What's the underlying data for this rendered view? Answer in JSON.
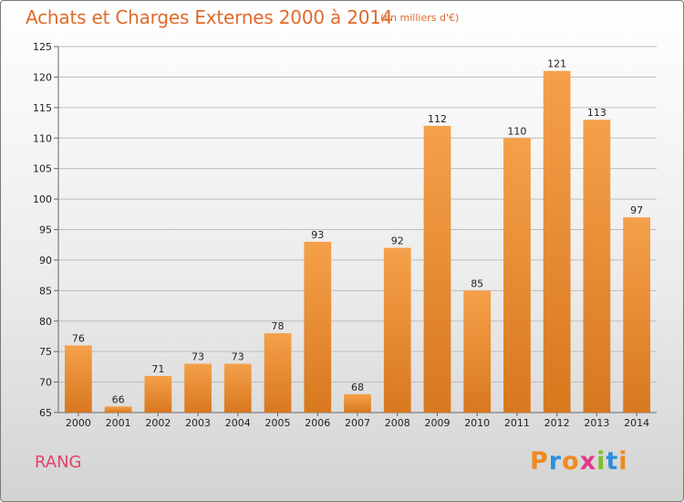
{
  "chart_data": {
    "type": "bar",
    "title": "Achats et Charges Externes 2000 à 2014",
    "subtitle": "(en milliers d'€)",
    "categories": [
      "2000",
      "2001",
      "2002",
      "2003",
      "2004",
      "2005",
      "2006",
      "2007",
      "2008",
      "2009",
      "2010",
      "2011",
      "2012",
      "2013",
      "2014"
    ],
    "values": [
      76,
      66,
      71,
      73,
      73,
      78,
      93,
      68,
      92,
      112,
      85,
      110,
      121,
      113,
      97
    ],
    "ylim": [
      65,
      125
    ],
    "yticks": [
      65,
      70,
      75,
      80,
      85,
      90,
      95,
      100,
      105,
      110,
      115,
      120,
      125
    ],
    "grid": true,
    "bar_color": "#f5a04a",
    "bar_color_dark": "#d8781f"
  },
  "footer": {
    "commune": "RANG",
    "logo": "Proxiti"
  },
  "colors": {
    "title": "#e06a2b",
    "commune": "#e0436a",
    "logo_letters": [
      "#f08a1e",
      "#2e8fd8",
      "#f08a1e",
      "#e03a8a",
      "#7fbf2a",
      "#2e8fd8",
      "#f08a1e"
    ]
  }
}
